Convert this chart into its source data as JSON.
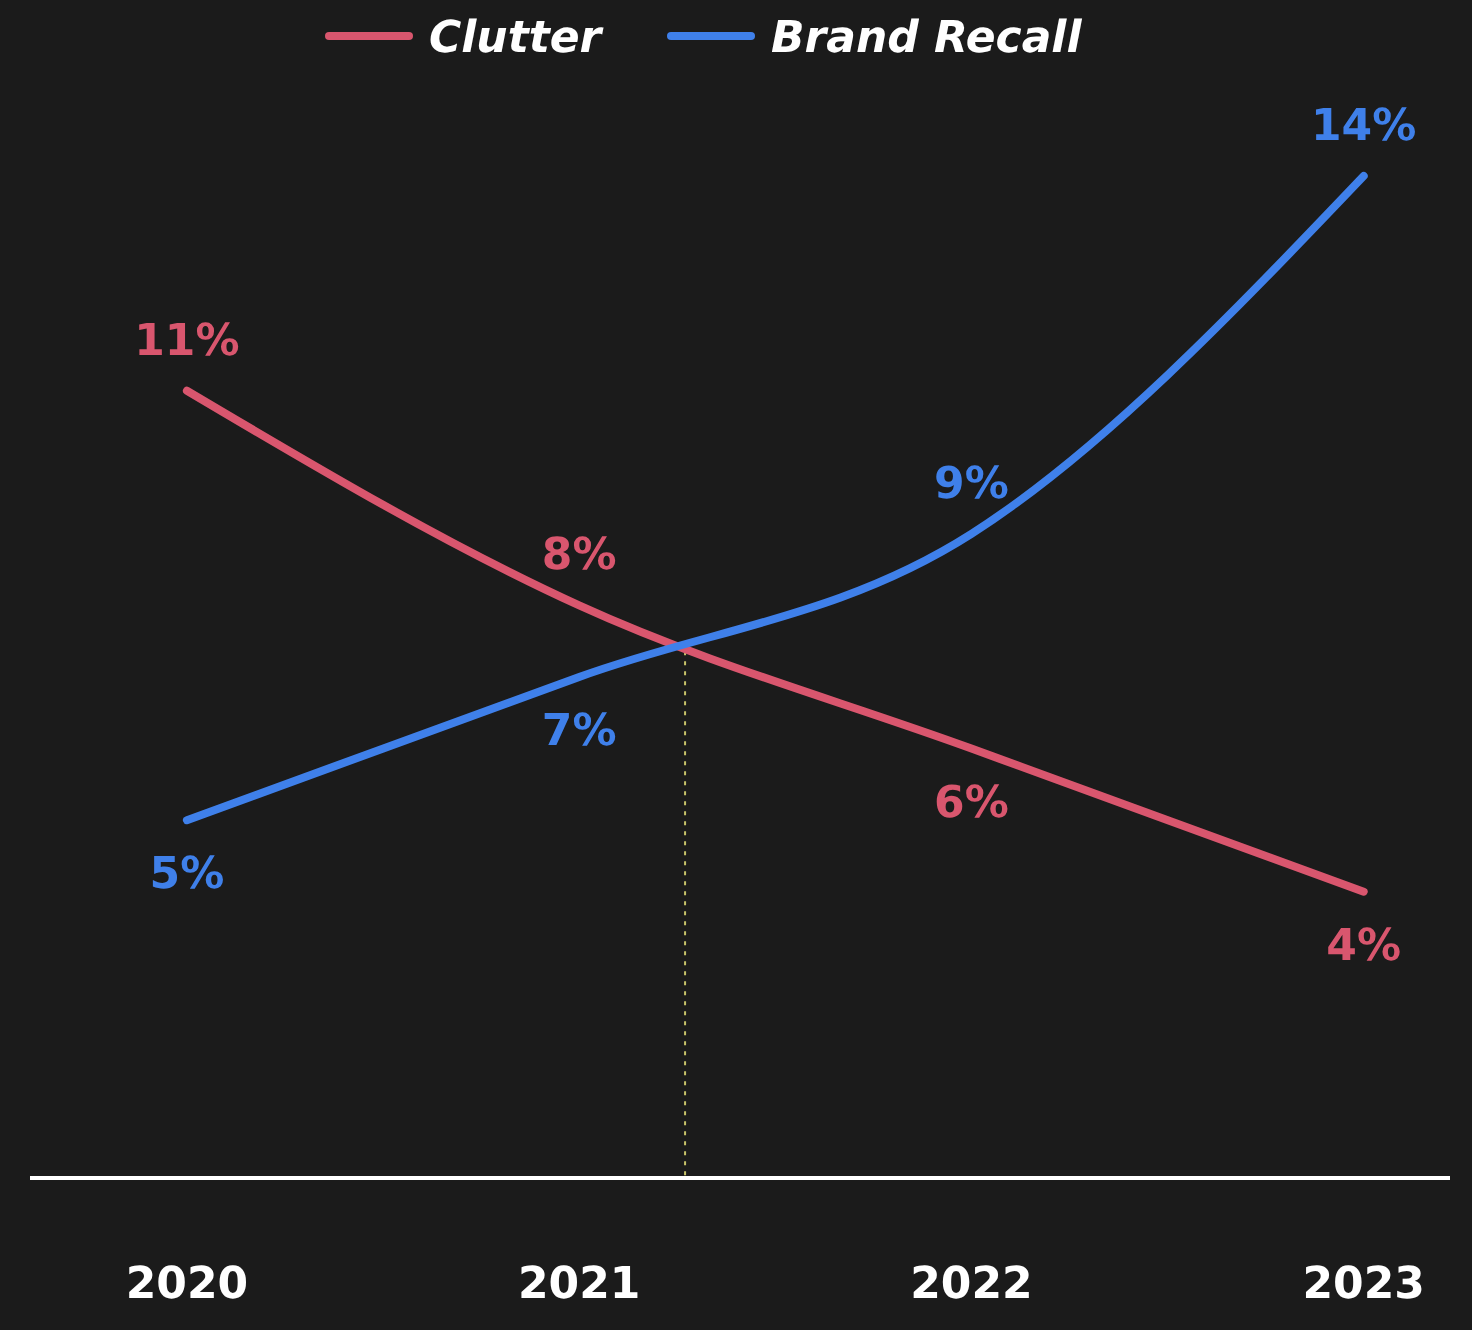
{
  "chart_data": {
    "type": "line",
    "x": [
      2020,
      2021,
      2022,
      2023
    ],
    "xlim": [
      2019.6,
      2023.22
    ],
    "xticks": [
      2020,
      2021,
      2022,
      2023
    ],
    "series": [
      {
        "name": "Clutter",
        "color": "#d9566e",
        "values": [
          11,
          8,
          6,
          4
        ],
        "value_labels": [
          "11%",
          "8%",
          "6%",
          "4%"
        ]
      },
      {
        "name": "Brand Recall",
        "color": "#3f80ea",
        "values": [
          5,
          7,
          9,
          14
        ],
        "value_labels": [
          "5%",
          "7%",
          "9%",
          "14%"
        ]
      }
    ],
    "ref_lines": [
      {
        "axis": "x",
        "value": 2021.27,
        "color": "#c8c46a",
        "line_style": "dotted"
      }
    ],
    "legend": "top",
    "tick_labels": "x",
    "marker": "none",
    "line_style": "solid"
  }
}
